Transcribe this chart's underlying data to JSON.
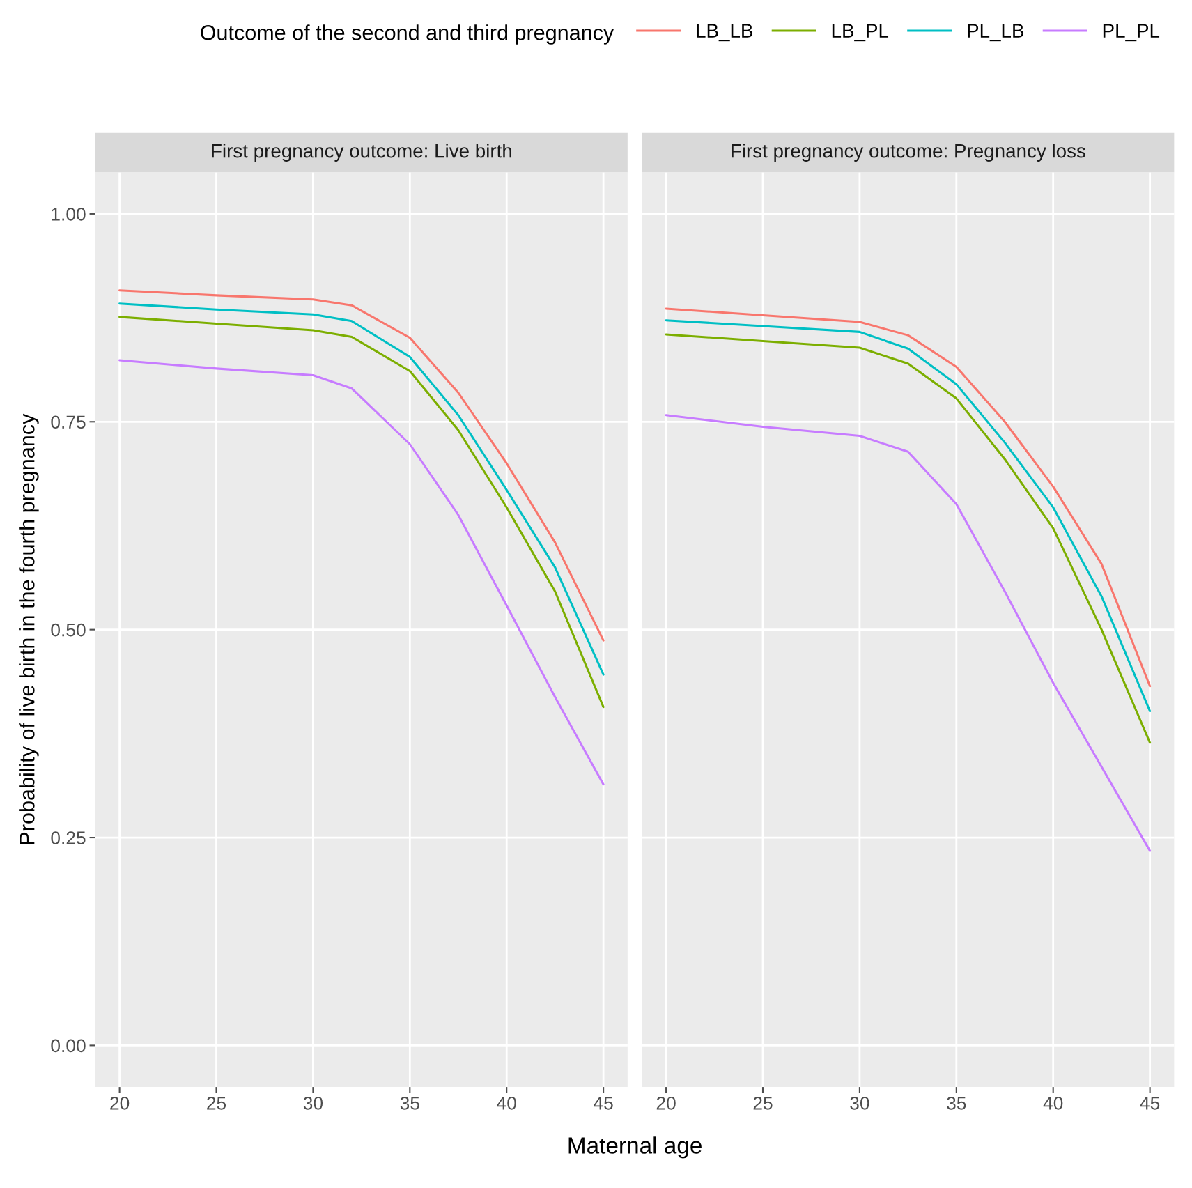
{
  "chart_data": [
    {
      "type": "line",
      "title": "First pregnancy outcome: Live birth",
      "xlabel": "Maternal age",
      "ylabel": "Probability of live birth in the fourth pregnancy",
      "legend_title": "Outcome of the second and third pregnancy",
      "legend": "top",
      "grid": true,
      "xlim": [
        18.75,
        46.25
      ],
      "xticks": [
        20,
        25,
        30,
        35,
        40,
        45
      ],
      "ylim": [
        -0.05,
        1.05
      ],
      "yticks": [
        {
          "value": 0,
          "label": "0.00"
        },
        {
          "value": 0.25,
          "label": "0.25"
        },
        {
          "value": 0.5,
          "label": "0.50"
        },
        {
          "value": 0.75,
          "label": "0.75"
        },
        {
          "value": 1,
          "label": "1.00"
        }
      ],
      "x": [
        20,
        25,
        30,
        32,
        35,
        37.5,
        40,
        42.5,
        45
      ],
      "series": [
        {
          "name": "LB_LB",
          "color": "#F8766D",
          "values": [
            0.908,
            0.902,
            0.897,
            0.89,
            0.851,
            0.785,
            0.7,
            0.605,
            0.487
          ]
        },
        {
          "name": "LB_PL",
          "color": "#7CAE00",
          "values": [
            0.876,
            0.868,
            0.86,
            0.852,
            0.811,
            0.74,
            0.647,
            0.546,
            0.407
          ]
        },
        {
          "name": "PL_LB",
          "color": "#00BFC4",
          "values": [
            0.892,
            0.885,
            0.879,
            0.871,
            0.828,
            0.758,
            0.668,
            0.575,
            0.446
          ]
        },
        {
          "name": "PL_PL",
          "color": "#C77CFF",
          "values": [
            0.824,
            0.814,
            0.806,
            0.79,
            0.723,
            0.638,
            0.529,
            0.419,
            0.314
          ]
        }
      ]
    },
    {
      "type": "line",
      "title": "First pregnancy outcome: Pregnancy loss",
      "grid": true,
      "tick_labels": "x",
      "xlim": [
        18.75,
        46.25
      ],
      "xticks": [
        20,
        25,
        30,
        35,
        40,
        45
      ],
      "ylim": [
        -0.05,
        1.05
      ],
      "yticks": [
        0,
        0.25,
        0.5,
        0.75,
        1
      ],
      "x": [
        20,
        25,
        30,
        32.5,
        35,
        37.5,
        40,
        42.5,
        45
      ],
      "series": [
        {
          "color": "#F8766D",
          "values": [
            0.886,
            0.878,
            0.87,
            0.854,
            0.816,
            0.75,
            0.672,
            0.579,
            0.432
          ]
        },
        {
          "color": "#7CAE00",
          "values": [
            0.855,
            0.847,
            0.839,
            0.82,
            0.778,
            0.705,
            0.622,
            0.5,
            0.364
          ]
        },
        {
          "color": "#00BFC4",
          "values": [
            0.872,
            0.865,
            0.858,
            0.838,
            0.795,
            0.725,
            0.647,
            0.54,
            0.402
          ]
        },
        {
          "color": "#C77CFF",
          "values": [
            0.758,
            0.744,
            0.733,
            0.714,
            0.651,
            0.546,
            0.436,
            0.335,
            0.234
          ]
        }
      ]
    }
  ]
}
